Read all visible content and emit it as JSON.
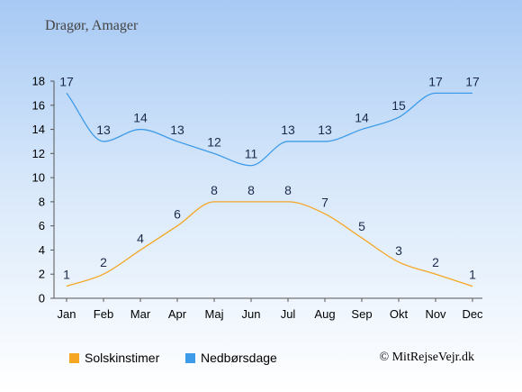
{
  "chart_data": {
    "type": "line",
    "title": "Dragør, Amager",
    "categories": [
      "Jan",
      "Feb",
      "Mar",
      "Apr",
      "Maj",
      "Jun",
      "Jul",
      "Aug",
      "Sep",
      "Okt",
      "Nov",
      "Dec"
    ],
    "series": [
      {
        "name": "Solskinstimer",
        "color": "#f5a623",
        "values": [
          1,
          2,
          4,
          6,
          8,
          8,
          8,
          7,
          5,
          3,
          2,
          1
        ]
      },
      {
        "name": "Nedbørsdage",
        "color": "#3d9be9",
        "values": [
          17,
          13,
          14,
          13,
          12,
          11,
          13,
          13,
          14,
          15,
          17,
          17
        ]
      }
    ],
    "ylim": [
      0,
      18
    ],
    "yticks": [
      0,
      2,
      4,
      6,
      8,
      10,
      12,
      14,
      16,
      18
    ],
    "grid": false,
    "legend_position": "bottom-left"
  },
  "copyright": "© MitRejseVejr.dk"
}
